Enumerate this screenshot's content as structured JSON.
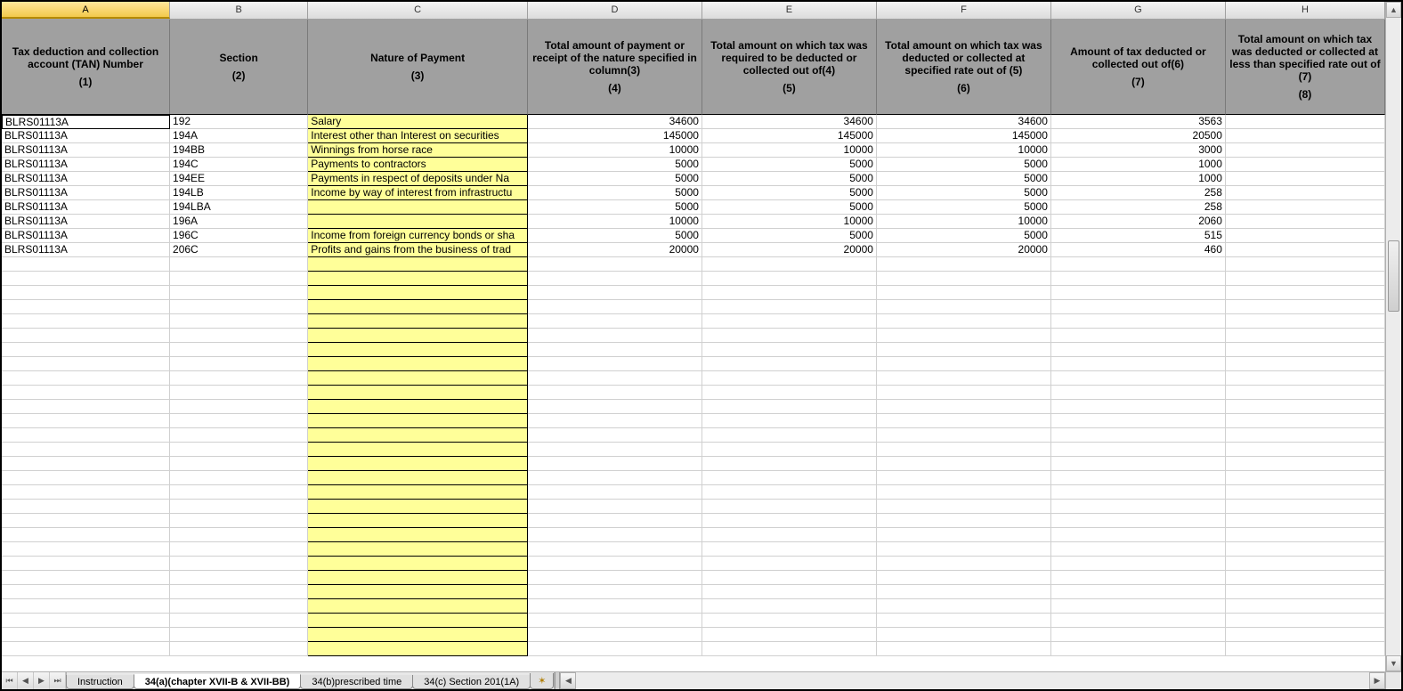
{
  "colLetters": [
    "A",
    "B",
    "C",
    "D",
    "E",
    "F",
    "G",
    "H"
  ],
  "selectedCol": "A",
  "header": {
    "A": {
      "title": "Tax deduction and collection account (TAN) Number",
      "num": "(1)"
    },
    "B": {
      "title": "Section",
      "num": "(2)"
    },
    "C": {
      "title": "Nature of Payment",
      "num": "(3)"
    },
    "D": {
      "title": "Total amount of payment or receipt of the nature specified in column(3)",
      "num": "(4)"
    },
    "E": {
      "title": "Total amount on which tax was required to be deducted or collected out of(4)",
      "num": "(5)"
    },
    "F": {
      "title": "Total amount on which tax was deducted or collected at specified rate out of (5)",
      "num": "(6)"
    },
    "G": {
      "title": "Amount of tax deducted or collected out of(6)",
      "num": "(7)"
    },
    "H": {
      "title": "Total amount on which tax was deducted or collected at less than specified rate out of (7)",
      "num": "(8)"
    }
  },
  "rows": [
    {
      "A": "BLRS01113A",
      "B": "192",
      "C": "Salary",
      "D": "34600",
      "E": "34600",
      "F": "34600",
      "G": "3563",
      "H": ""
    },
    {
      "A": "BLRS01113A",
      "B": "194A",
      "C": "Interest other than Interest on securities",
      "D": "145000",
      "E": "145000",
      "F": "145000",
      "G": "20500",
      "H": ""
    },
    {
      "A": "BLRS01113A",
      "B": "194BB",
      "C": "Winnings from horse race",
      "D": "10000",
      "E": "10000",
      "F": "10000",
      "G": "3000",
      "H": ""
    },
    {
      "A": "BLRS01113A",
      "B": "194C",
      "C": "Payments to contractors",
      "D": "5000",
      "E": "5000",
      "F": "5000",
      "G": "1000",
      "H": ""
    },
    {
      "A": "BLRS01113A",
      "B": "194EE",
      "C": "Payments in respect of deposits under Na",
      "D": "5000",
      "E": "5000",
      "F": "5000",
      "G": "1000",
      "H": ""
    },
    {
      "A": "BLRS01113A",
      "B": "194LB",
      "C": "Income by way of interest from infrastructu",
      "D": "5000",
      "E": "5000",
      "F": "5000",
      "G": "258",
      "H": ""
    },
    {
      "A": "BLRS01113A",
      "B": "194LBA",
      "C": "",
      "D": "5000",
      "E": "5000",
      "F": "5000",
      "G": "258",
      "H": ""
    },
    {
      "A": "BLRS01113A",
      "B": "196A",
      "C": "",
      "D": "10000",
      "E": "10000",
      "F": "10000",
      "G": "2060",
      "H": ""
    },
    {
      "A": "BLRS01113A",
      "B": "196C",
      "C": "Income from foreign currency bonds or sha",
      "D": "5000",
      "E": "5000",
      "F": "5000",
      "G": "515",
      "H": ""
    },
    {
      "A": "BLRS01113A",
      "B": "206C",
      "C": "Profits and gains from the business of trad",
      "D": "20000",
      "E": "20000",
      "F": "20000",
      "G": "460",
      "H": ""
    }
  ],
  "emptyRows": 28,
  "tabs": {
    "navFirst": "⏮",
    "navPrev": "◀",
    "navNext": "▶",
    "navLast": "⏭",
    "items": [
      {
        "label": "Instruction",
        "active": false
      },
      {
        "label": "34(a)(chapter XVII-B & XVII-BB)",
        "active": true
      },
      {
        "label": "34(b)prescribed time",
        "active": false
      },
      {
        "label": "34(c) Section 201(1A)",
        "active": false
      }
    ],
    "newTab": "✶"
  },
  "style": {
    "headerBg": "#a0a0a0",
    "yellow": "#ffff99",
    "gridLine": "#d0d0d0",
    "selectedColHeader": "#f2c94c",
    "font": "Arial",
    "dataFontSize": 12,
    "headerFontSize": 12,
    "headerBold": true,
    "rowHeightPx": 16,
    "headerRowHeightPx": 107,
    "colWidthsPx": {
      "A": 190,
      "B": 156,
      "C": 248,
      "D": 197,
      "E": 197,
      "F": 197,
      "G": 197,
      "H": 180
    },
    "yellowColumn": "C",
    "numericColumns": [
      "D",
      "E",
      "F",
      "G",
      "H"
    ],
    "activeCell": "A2"
  }
}
